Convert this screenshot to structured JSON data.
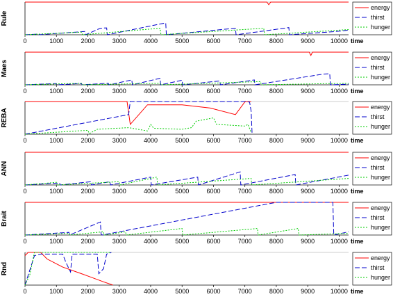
{
  "colors": {
    "energy": "#ff0000",
    "thirst": "#0000cc",
    "hunger": "#00cc00"
  },
  "chart_data": [
    {
      "type": "line",
      "ylabel": "Rule",
      "xlabel": "time",
      "xlim": [
        0,
        10300
      ],
      "ylim": [
        0,
        1
      ],
      "xticks": [
        "0",
        "1000",
        "2000",
        "3000",
        "4000",
        "5000",
        "6000",
        "7000",
        "8000",
        "9000",
        "10000"
      ],
      "legend": "right",
      "series": [
        {
          "name": "energy",
          "points": [
            [
              0,
              1
            ],
            [
              7700,
              1
            ],
            [
              7760,
              0.92
            ],
            [
              7820,
              1
            ],
            [
              10300,
              1
            ]
          ]
        },
        {
          "name": "thirst",
          "points": [
            [
              0,
              0
            ],
            [
              400,
              0.02
            ],
            [
              420,
              0
            ],
            [
              1900,
              0.1
            ],
            [
              1930,
              0
            ],
            [
              2400,
              0.2
            ],
            [
              2600,
              0.21
            ],
            [
              2620,
              0
            ],
            [
              4300,
              0.33
            ],
            [
              4480,
              0.36
            ],
            [
              4500,
              0
            ],
            [
              6700,
              0.2
            ],
            [
              6720,
              0
            ],
            [
              8400,
              0.22
            ],
            [
              8420,
              0
            ],
            [
              9900,
              0.1
            ],
            [
              10300,
              0.14
            ]
          ]
        },
        {
          "name": "hunger",
          "points": [
            [
              0,
              0
            ],
            [
              1800,
              0.08
            ],
            [
              1830,
              0
            ],
            [
              4300,
              0.2
            ],
            [
              4330,
              0
            ],
            [
              7600,
              0.2
            ],
            [
              7630,
              0
            ],
            [
              10300,
              0.16
            ]
          ]
        }
      ]
    },
    {
      "type": "line",
      "ylabel": "Maes",
      "xlabel": "time",
      "xlim": [
        0,
        10300
      ],
      "ylim": [
        0,
        1
      ],
      "xticks": [
        "0",
        "1000",
        "2000",
        "3000",
        "4000",
        "5000",
        "6000",
        "7000",
        "8000",
        "9000",
        "10000"
      ],
      "legend": "right",
      "series": [
        {
          "name": "energy",
          "points": [
            [
              0,
              1
            ],
            [
              9050,
              1
            ],
            [
              9100,
              0.9
            ],
            [
              9150,
              1
            ],
            [
              10300,
              1
            ]
          ]
        },
        {
          "name": "thirst",
          "points": [
            [
              0,
              0
            ],
            [
              1000,
              0.04
            ],
            [
              1020,
              0
            ],
            [
              1800,
              0.04
            ],
            [
              1820,
              0
            ],
            [
              2650,
              0.05
            ],
            [
              2670,
              0
            ],
            [
              3400,
              0.15
            ],
            [
              3420,
              0
            ],
            [
              4300,
              0.2
            ],
            [
              4320,
              0
            ],
            [
              5000,
              0.14
            ],
            [
              5020,
              0
            ],
            [
              6200,
              0.12
            ],
            [
              6220,
              0
            ],
            [
              7300,
              0.15
            ],
            [
              7320,
              0
            ],
            [
              9500,
              0.33
            ],
            [
              9700,
              0.34
            ],
            [
              9720,
              0
            ],
            [
              10300,
              0.02
            ]
          ]
        },
        {
          "name": "hunger",
          "points": [
            [
              0,
              0
            ],
            [
              1800,
              0.05
            ],
            [
              1820,
              0
            ],
            [
              4300,
              0.05
            ],
            [
              4320,
              0
            ],
            [
              7500,
              0.1
            ],
            [
              7520,
              0
            ],
            [
              10300,
              0.05
            ]
          ]
        }
      ]
    },
    {
      "type": "line",
      "ylabel": "REBA",
      "xlabel": "time",
      "xlim": [
        0,
        10300
      ],
      "ylim": [
        0,
        1
      ],
      "xticks": [
        "0",
        "1000",
        "2000",
        "3000",
        "4000",
        "5000",
        "6000",
        "7000",
        "8000",
        "9000",
        "10000"
      ],
      "legend": "right",
      "series": [
        {
          "name": "energy",
          "points": [
            [
              0,
              1
            ],
            [
              3250,
              1
            ],
            [
              3350,
              0.3
            ],
            [
              3900,
              0.9
            ],
            [
              5000,
              0.9
            ],
            [
              5900,
              0.8
            ],
            [
              6700,
              0.6
            ],
            [
              7000,
              0.99
            ],
            [
              7200,
              1
            ]
          ]
        },
        {
          "name": "thirst",
          "points": [
            [
              0,
              0
            ],
            [
              3300,
              0.6
            ],
            [
              3350,
              1
            ],
            [
              7050,
              1
            ],
            [
              7150,
              0.98
            ],
            [
              7200,
              0.7
            ],
            [
              7230,
              0
            ]
          ]
        },
        {
          "name": "hunger",
          "points": [
            [
              0,
              0
            ],
            [
              2000,
              0.12
            ],
            [
              2050,
              0.02
            ],
            [
              2300,
              0.15
            ],
            [
              3300,
              0.2
            ],
            [
              3900,
              0.1
            ],
            [
              4000,
              0.3
            ],
            [
              4100,
              0.18
            ],
            [
              5000,
              0.15
            ],
            [
              5300,
              0.2
            ],
            [
              5450,
              0.4
            ],
            [
              6000,
              0.5
            ],
            [
              6100,
              0.3
            ],
            [
              7000,
              0.25
            ],
            [
              7100,
              0.3
            ],
            [
              7200,
              0.05
            ]
          ]
        }
      ]
    },
    {
      "type": "line",
      "ylabel": "ANN",
      "xlabel": "time",
      "xlim": [
        0,
        10300
      ],
      "ylim": [
        0,
        1
      ],
      "xticks": [
        "0",
        "1000",
        "2000",
        "3000",
        "4000",
        "5000",
        "6000",
        "7000",
        "8000",
        "9000",
        "10000"
      ],
      "legend": "right",
      "series": [
        {
          "name": "energy",
          "points": [
            [
              0,
              1
            ],
            [
              10300,
              1
            ]
          ]
        },
        {
          "name": "thirst",
          "points": [
            [
              0,
              0
            ],
            [
              1100,
              0.06
            ],
            [
              1120,
              0
            ],
            [
              2100,
              0.1
            ],
            [
              2120,
              0
            ],
            [
              2700,
              0.1
            ],
            [
              2720,
              0
            ],
            [
              4000,
              0.24
            ],
            [
              4020,
              0
            ],
            [
              5500,
              0.24
            ],
            [
              5520,
              0
            ],
            [
              6850,
              0.4
            ],
            [
              6870,
              0
            ],
            [
              8600,
              0.32
            ],
            [
              8620,
              0
            ],
            [
              10300,
              0.3
            ]
          ]
        },
        {
          "name": "hunger",
          "points": [
            [
              0,
              0
            ],
            [
              1000,
              0.08
            ],
            [
              1020,
              0
            ],
            [
              3000,
              0.1
            ],
            [
              3020,
              0
            ],
            [
              4200,
              0.24
            ],
            [
              4220,
              0
            ],
            [
              7200,
              0.2
            ],
            [
              7220,
              0
            ],
            [
              10300,
              0.2
            ]
          ]
        }
      ]
    },
    {
      "type": "line",
      "ylabel": "Brait",
      "xlabel": "time",
      "xlim": [
        0,
        10300
      ],
      "ylim": [
        0,
        1
      ],
      "xticks": [
        "0",
        "1000",
        "2000",
        "3000",
        "4000",
        "5000",
        "6000",
        "7000",
        "8000",
        "9000",
        "10000"
      ],
      "legend": "right",
      "series": [
        {
          "name": "energy",
          "points": [
            [
              0,
              1
            ],
            [
              10300,
              1
            ]
          ]
        },
        {
          "name": "thirst",
          "points": [
            [
              0,
              0
            ],
            [
              1400,
              0.08
            ],
            [
              1420,
              0
            ],
            [
              2400,
              0.4
            ],
            [
              2420,
              0.04
            ],
            [
              2450,
              0
            ],
            [
              8000,
              1
            ],
            [
              9800,
              1
            ],
            [
              9830,
              0
            ],
            [
              10300,
              0.1
            ]
          ]
        },
        {
          "name": "hunger",
          "points": [
            [
              0,
              0
            ],
            [
              1400,
              0.05
            ],
            [
              1420,
              0
            ],
            [
              2500,
              0.1
            ],
            [
              2520,
              0
            ],
            [
              3200,
              0.1
            ],
            [
              3220,
              0
            ],
            [
              5000,
              0.2
            ],
            [
              5020,
              0
            ],
            [
              7400,
              0.2
            ],
            [
              7420,
              0
            ],
            [
              8700,
              0.2
            ],
            [
              8720,
              0
            ],
            [
              10300,
              0.05
            ]
          ]
        }
      ]
    },
    {
      "type": "line",
      "ylabel": "Rnd",
      "xlabel": "time",
      "xlim": [
        0,
        10300
      ],
      "ylim": [
        0,
        1
      ],
      "xticks": [
        "0",
        "1000",
        "2000",
        "3000",
        "4000",
        "5000",
        "6000",
        "7000",
        "8000",
        "9000",
        "10000"
      ],
      "legend": "right",
      "series": [
        {
          "name": "energy",
          "points": [
            [
              0,
              0.9
            ],
            [
              100,
              1
            ],
            [
              500,
              1
            ],
            [
              700,
              0.8
            ],
            [
              1200,
              0.55
            ],
            [
              1800,
              0.35
            ],
            [
              2500,
              0.1
            ],
            [
              2800,
              0
            ]
          ]
        },
        {
          "name": "thirst",
          "points": [
            [
              0,
              0
            ],
            [
              300,
              0.9
            ],
            [
              500,
              0.95
            ],
            [
              1200,
              0.95
            ],
            [
              1300,
              0.7
            ],
            [
              1450,
              0.4
            ],
            [
              1500,
              0.95
            ],
            [
              2300,
              0.95
            ],
            [
              2350,
              0.35
            ],
            [
              2500,
              0.5
            ],
            [
              2600,
              0.95
            ],
            [
              2750,
              1
            ]
          ]
        },
        {
          "name": "hunger",
          "points": [
            [
              0,
              0
            ],
            [
              150,
              0.3
            ],
            [
              300,
              1
            ],
            [
              2750,
              1
            ]
          ]
        }
      ]
    }
  ]
}
